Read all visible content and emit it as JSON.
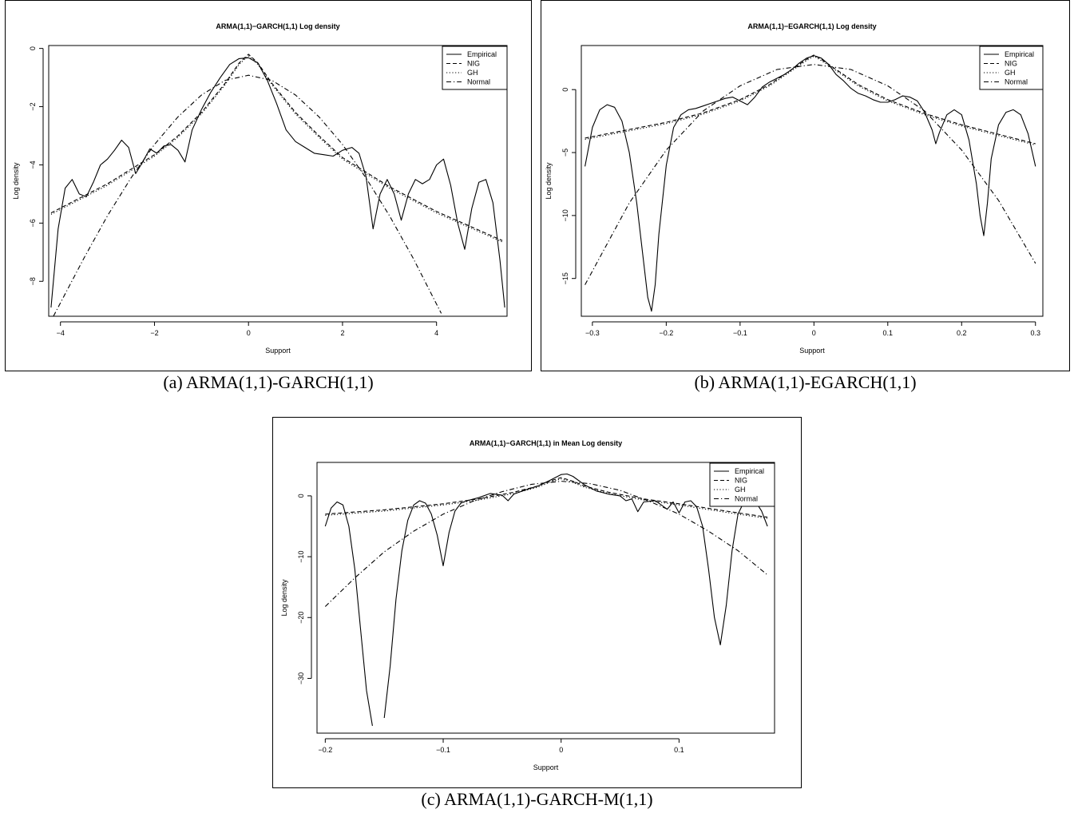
{
  "captions": {
    "a": "(a) ARMA(1,1)-GARCH(1,1)",
    "b": "(b) ARMA(1,1)-EGARCH(1,1)",
    "c": "(c) ARMA(1,1)-GARCH-M(1,1)"
  },
  "legend_styles": {
    "Empirical": "solid",
    "NIG": "dashed",
    "GH": "dotted",
    "Normal": "dashdot"
  },
  "chart_data": [
    {
      "id": "a",
      "type": "line",
      "title": "ARMA(1,1)−GARCH(1,1) Log density",
      "xlabel": "Support",
      "ylabel": "Log density",
      "xlim": [
        -4.25,
        5.5
      ],
      "ylim": [
        -9.2,
        0.1
      ],
      "xticks": [
        -4,
        -2,
        0,
        2,
        4
      ],
      "yticks": [
        0,
        -2,
        -4,
        -6,
        -8
      ],
      "legend_position": "top-right",
      "series": [
        {
          "name": "Empirical",
          "x": [
            -4.2,
            -4.05,
            -3.9,
            -3.75,
            -3.6,
            -3.45,
            -3.3,
            -3.15,
            -3.0,
            -2.85,
            -2.7,
            -2.55,
            -2.4,
            -2.25,
            -2.1,
            -1.95,
            -1.8,
            -1.65,
            -1.5,
            -1.35,
            -1.2,
            -1.0,
            -0.8,
            -0.6,
            -0.4,
            -0.2,
            0.0,
            0.2,
            0.4,
            0.6,
            0.8,
            1.0,
            1.2,
            1.4,
            1.6,
            1.8,
            2.0,
            2.2,
            2.35,
            2.5,
            2.65,
            2.8,
            2.95,
            3.1,
            3.25,
            3.4,
            3.55,
            3.7,
            3.85,
            4.0,
            4.15,
            4.3,
            4.45,
            4.6,
            4.75,
            4.9,
            5.05,
            5.2,
            5.35,
            5.45
          ],
          "y": [
            -8.9,
            -6.2,
            -4.8,
            -4.5,
            -5.0,
            -5.1,
            -4.6,
            -4.0,
            -3.8,
            -3.5,
            -3.15,
            -3.4,
            -4.3,
            -3.9,
            -3.45,
            -3.6,
            -3.35,
            -3.3,
            -3.5,
            -3.9,
            -2.8,
            -2.1,
            -1.5,
            -1.0,
            -0.55,
            -0.35,
            -0.32,
            -0.5,
            -1.1,
            -1.9,
            -2.8,
            -3.2,
            -3.4,
            -3.6,
            -3.65,
            -3.7,
            -3.5,
            -3.4,
            -3.6,
            -4.4,
            -6.2,
            -5.0,
            -4.5,
            -5.0,
            -5.9,
            -5.0,
            -4.5,
            -4.65,
            -4.5,
            -4.0,
            -3.8,
            -4.7,
            -6.0,
            -6.9,
            -5.5,
            -4.6,
            -4.5,
            -5.3,
            -7.3,
            -8.9
          ]
        },
        {
          "name": "NIG",
          "x": [
            -4.2,
            -3.0,
            -2.0,
            -1.5,
            -1.0,
            -0.5,
            -0.2,
            0.0,
            0.2,
            0.5,
            1.0,
            1.5,
            2.0,
            3.0,
            4.0,
            5.4
          ],
          "y": [
            -5.65,
            -4.65,
            -3.65,
            -3.0,
            -2.2,
            -1.2,
            -0.5,
            -0.2,
            -0.5,
            -1.2,
            -2.2,
            -3.0,
            -3.75,
            -4.75,
            -5.6,
            -6.6
          ]
        },
        {
          "name": "GH",
          "x": [
            -4.2,
            -3.0,
            -2.0,
            -1.5,
            -1.0,
            -0.5,
            -0.2,
            0.0,
            0.2,
            0.5,
            1.0,
            1.5,
            2.0,
            3.0,
            4.0,
            5.4
          ],
          "y": [
            -5.7,
            -4.7,
            -3.7,
            -3.05,
            -2.25,
            -1.25,
            -0.55,
            -0.25,
            -0.55,
            -1.25,
            -2.25,
            -3.05,
            -3.8,
            -4.8,
            -5.65,
            -6.65
          ]
        },
        {
          "name": "Normal",
          "x": [
            -4.15,
            -3.5,
            -3.0,
            -2.5,
            -2.0,
            -1.5,
            -1.0,
            -0.5,
            0.0,
            0.5,
            1.0,
            1.5,
            2.0,
            2.5,
            3.0,
            3.5,
            4.1
          ],
          "y": [
            -9.2,
            -7.2,
            -5.75,
            -4.45,
            -3.3,
            -2.35,
            -1.6,
            -1.1,
            -0.92,
            -1.1,
            -1.6,
            -2.35,
            -3.3,
            -4.45,
            -5.75,
            -7.2,
            -9.1
          ]
        }
      ]
    },
    {
      "id": "b",
      "type": "line",
      "title": "ARMA(1,1)−EGARCH(1,1) Log density",
      "xlabel": "Support",
      "ylabel": "Log density",
      "xlim": [
        -0.315,
        0.31
      ],
      "ylim": [
        -18.0,
        3.5
      ],
      "xticks": [
        -0.3,
        -0.2,
        -0.1,
        0.0,
        0.1,
        0.2,
        0.3
      ],
      "yticks": [
        0,
        -5,
        -10,
        -15
      ],
      "legend_position": "top-right",
      "series": [
        {
          "name": "Empirical",
          "x": [
            -0.31,
            -0.3,
            -0.29,
            -0.28,
            -0.27,
            -0.26,
            -0.25,
            -0.24,
            -0.23,
            -0.225,
            -0.22,
            -0.215,
            -0.21,
            -0.2,
            -0.19,
            -0.18,
            -0.17,
            -0.16,
            -0.15,
            -0.14,
            -0.13,
            -0.12,
            -0.11,
            -0.1,
            -0.09,
            -0.08,
            -0.07,
            -0.06,
            -0.05,
            -0.04,
            -0.03,
            -0.02,
            -0.01,
            0.0,
            0.01,
            0.02,
            0.03,
            0.04,
            0.05,
            0.06,
            0.07,
            0.08,
            0.09,
            0.1,
            0.11,
            0.12,
            0.13,
            0.14,
            0.15,
            0.16,
            0.165,
            0.17,
            0.18,
            0.19,
            0.2,
            0.21,
            0.22,
            0.225,
            0.23,
            0.235,
            0.24,
            0.25,
            0.26,
            0.27,
            0.28,
            0.29,
            0.3
          ],
          "y": [
            -6.1,
            -3.0,
            -1.6,
            -1.2,
            -1.4,
            -2.5,
            -5.0,
            -9.0,
            -14.0,
            -16.5,
            -17.6,
            -15.5,
            -11.5,
            -6.0,
            -3.0,
            -2.0,
            -1.6,
            -1.5,
            -1.3,
            -1.1,
            -0.9,
            -0.7,
            -0.6,
            -0.9,
            -1.2,
            -0.6,
            0.2,
            0.6,
            0.9,
            1.2,
            1.6,
            2.1,
            2.5,
            2.7,
            2.5,
            2.0,
            1.2,
            0.7,
            0.1,
            -0.3,
            -0.5,
            -0.8,
            -1.0,
            -1.0,
            -0.8,
            -0.5,
            -0.6,
            -0.9,
            -1.8,
            -3.2,
            -4.3,
            -3.4,
            -2.0,
            -1.6,
            -2.0,
            -4.0,
            -7.5,
            -10.0,
            -11.6,
            -9.0,
            -5.5,
            -2.8,
            -1.8,
            -1.6,
            -2.0,
            -3.5,
            -6.1
          ]
        },
        {
          "name": "NIG",
          "x": [
            -0.31,
            -0.2,
            -0.15,
            -0.1,
            -0.06,
            -0.03,
            -0.01,
            0.0,
            0.01,
            0.03,
            0.06,
            0.1,
            0.15,
            0.2,
            0.3
          ],
          "y": [
            -3.85,
            -2.6,
            -1.85,
            -0.8,
            0.4,
            1.6,
            2.4,
            2.75,
            2.4,
            1.6,
            0.4,
            -0.8,
            -1.9,
            -2.8,
            -4.3
          ]
        },
        {
          "name": "GH",
          "x": [
            -0.31,
            -0.2,
            -0.15,
            -0.1,
            -0.06,
            -0.03,
            -0.01,
            0.0,
            0.01,
            0.03,
            0.06,
            0.1,
            0.15,
            0.2,
            0.3
          ],
          "y": [
            -3.95,
            -2.7,
            -1.95,
            -0.9,
            0.3,
            1.5,
            2.3,
            2.65,
            2.3,
            1.5,
            0.3,
            -0.9,
            -2.0,
            -2.9,
            -4.4
          ]
        },
        {
          "name": "Normal",
          "x": [
            -0.31,
            -0.25,
            -0.2,
            -0.15,
            -0.1,
            -0.05,
            0.0,
            0.05,
            0.1,
            0.15,
            0.2,
            0.25,
            0.3
          ],
          "y": [
            -15.5,
            -9.0,
            -4.8,
            -1.7,
            0.3,
            1.6,
            2.0,
            1.6,
            0.3,
            -1.7,
            -4.8,
            -8.8,
            -13.8
          ]
        }
      ]
    },
    {
      "id": "c",
      "type": "line",
      "title": "ARMA(1,1)−GARCH(1,1) in Mean Log density",
      "xlabel": "Support",
      "ylabel": "Log density",
      "xlim": [
        -0.207,
        0.181
      ],
      "ylim": [
        -39.0,
        5.5
      ],
      "xticks": [
        -0.2,
        -0.1,
        0.0,
        0.1
      ],
      "yticks": [
        0,
        -10,
        -20,
        -30
      ],
      "legend_position": "top-right",
      "series": [
        {
          "name": "Empirical",
          "x": [
            -0.2,
            -0.195,
            -0.19,
            -0.185,
            -0.18,
            -0.175,
            -0.17,
            -0.165,
            -0.16,
            -0.155,
            -0.15,
            -0.145,
            -0.14,
            -0.135,
            -0.13,
            -0.125,
            -0.12,
            -0.115,
            -0.11,
            -0.105,
            -0.1,
            -0.095,
            -0.09,
            -0.085,
            -0.08,
            -0.07,
            -0.06,
            -0.05,
            -0.045,
            -0.04,
            -0.03,
            -0.02,
            -0.01,
            0.0,
            0.005,
            0.01,
            0.02,
            0.03,
            0.04,
            0.05,
            0.055,
            0.06,
            0.065,
            0.07,
            0.08,
            0.085,
            0.09,
            0.095,
            0.1,
            0.105,
            0.11,
            0.115,
            0.12,
            0.125,
            0.13,
            0.135,
            0.14,
            0.145,
            0.15,
            0.155,
            0.16,
            0.165,
            0.17,
            0.175
          ],
          "y": [
            -5.0,
            -2.0,
            -1.0,
            -1.5,
            -5.0,
            -12.0,
            -22.0,
            -32.0,
            -37.8,
            null,
            -36.5,
            -28.0,
            -17.0,
            -9.0,
            -4.0,
            -1.5,
            -0.8,
            -1.2,
            -3.0,
            -6.5,
            -11.5,
            -6.0,
            -2.5,
            -1.2,
            -0.8,
            -0.3,
            0.4,
            0.1,
            -0.8,
            0.3,
            1.0,
            1.6,
            2.5,
            3.5,
            3.6,
            3.2,
            1.8,
            0.8,
            0.3,
            0.0,
            -0.8,
            -0.5,
            -2.6,
            -1.0,
            -0.8,
            -1.5,
            -2.2,
            -1.0,
            -2.8,
            -1.0,
            -0.8,
            -1.8,
            -5.0,
            -12.0,
            -20.0,
            -24.5,
            -18.0,
            -9.0,
            -3.0,
            -1.0,
            -0.5,
            -1.0,
            -2.5,
            -5.0
          ]
        },
        {
          "name": "NIG",
          "x": [
            -0.2,
            -0.15,
            -0.1,
            -0.07,
            -0.04,
            -0.02,
            -0.01,
            0.0,
            0.01,
            0.02,
            0.04,
            0.07,
            0.1,
            0.15,
            0.175
          ],
          "y": [
            -3.0,
            -2.3,
            -1.3,
            -0.5,
            0.6,
            1.6,
            2.4,
            3.0,
            2.4,
            1.6,
            0.6,
            -0.5,
            -1.3,
            -2.8,
            -3.5
          ]
        },
        {
          "name": "GH",
          "x": [
            -0.2,
            -0.15,
            -0.1,
            -0.07,
            -0.04,
            -0.02,
            -0.01,
            0.0,
            0.01,
            0.02,
            0.04,
            0.07,
            0.1,
            0.15,
            0.175
          ],
          "y": [
            -3.2,
            -2.5,
            -1.5,
            -0.7,
            0.4,
            1.4,
            2.2,
            2.8,
            2.2,
            1.4,
            0.4,
            -0.7,
            -1.5,
            -3.0,
            -3.7
          ]
        },
        {
          "name": "Normal",
          "x": [
            -0.2,
            -0.175,
            -0.15,
            -0.125,
            -0.1,
            -0.075,
            -0.05,
            -0.025,
            0.0,
            0.025,
            0.05,
            0.075,
            0.1,
            0.125,
            0.15,
            0.175
          ],
          "y": [
            -18.2,
            -13.5,
            -9.2,
            -5.8,
            -3.0,
            -0.9,
            0.7,
            1.9,
            2.4,
            2.0,
            0.9,
            -0.9,
            -3.0,
            -5.8,
            -9.0,
            -13.0
          ]
        }
      ]
    }
  ]
}
